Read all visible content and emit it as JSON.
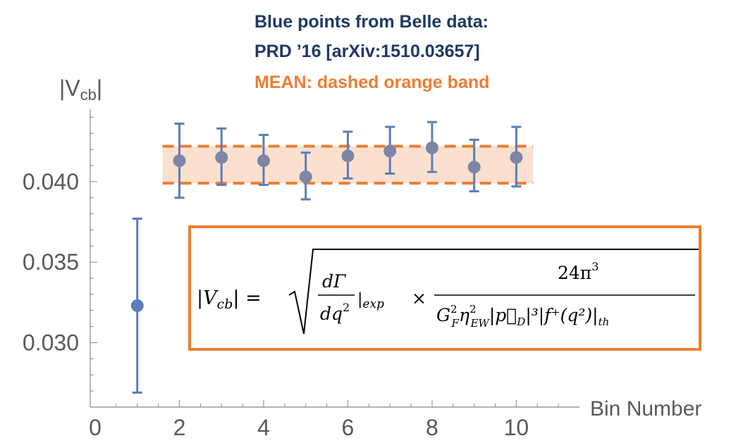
{
  "annotations": {
    "line1": "Blue points from Belle data:",
    "line2": "PRD ’16 [arXiv:1510.03657]",
    "line3": "MEAN: dashed orange band"
  },
  "formula": {
    "lhs": "|V",
    "lhs_sub": "cb",
    "eq": "| =",
    "frac1_num": "dΓ",
    "frac1_den": "dq",
    "exp_label": "|exp",
    "times": "×",
    "frac2_num": "24π",
    "frac2_den_main": "G",
    "frac2_den_rest": "η",
    "frac2_den_ew": "EW",
    "frac2_den_p": "|p⃗",
    "frac2_den_d": "D",
    "frac2_den_f": "|³|f⁺(q²)|",
    "frac2_den_th": "th"
  },
  "colors": {
    "points": "#5b7db8",
    "band_fill": "#fbe0cf",
    "band_line": "#ed7d31",
    "axis": "#888888",
    "tick_label": "#595959"
  },
  "chart_data": {
    "type": "scatter",
    "title": "",
    "xlabel": "Bin Number",
    "ylabel": "|V_cb|",
    "ylabel_main": "|V",
    "ylabel_sub": "cb",
    "ylabel_end": "|",
    "xlim": [
      0,
      11.5
    ],
    "ylim": [
      0.026,
      0.0445
    ],
    "xticks": [
      0,
      2,
      4,
      6,
      8,
      10
    ],
    "yticks": [
      0.03,
      0.035,
      0.04
    ],
    "ytick_labels": [
      "0.030",
      "0.035",
      "0.040"
    ],
    "series": [
      {
        "x": [
          1,
          2,
          3,
          4,
          5,
          6,
          7,
          8,
          9,
          10
        ],
        "y": [
          0.0323,
          0.0413,
          0.0415,
          0.0413,
          0.0403,
          0.0416,
          0.0419,
          0.0421,
          0.0409,
          0.0415
        ],
        "err_low": [
          0.0269,
          0.039,
          0.0398,
          0.0398,
          0.0389,
          0.0402,
          0.0405,
          0.0406,
          0.0394,
          0.0397
        ],
        "err_high": [
          0.0377,
          0.0436,
          0.0433,
          0.0429,
          0.0418,
          0.0431,
          0.0434,
          0.0437,
          0.0426,
          0.0434
        ]
      }
    ],
    "band": {
      "x_from": 1.6,
      "x_to": 10.4,
      "low": 0.0399,
      "high": 0.0422
    }
  }
}
